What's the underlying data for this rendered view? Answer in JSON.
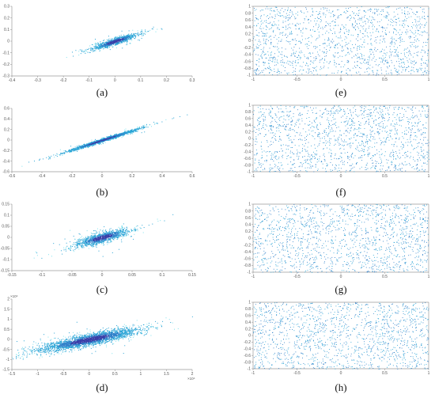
{
  "figure": {
    "panels": [
      "(a)",
      "(b)",
      "(c)",
      "(d)",
      "(e)",
      "(f)",
      "(g)",
      "(h)"
    ]
  },
  "colors": {
    "sparse": "#2aa4d6",
    "dense": "#3a3fa8",
    "mid": "#2d7fc9",
    "light": "#7fe3ee",
    "axis": "#9a9a9a"
  },
  "chart_data": [
    {
      "type": "scatter",
      "title": "(a)",
      "xlim": [
        -0.4,
        0.3
      ],
      "ylim": [
        -0.3,
        0.3
      ],
      "xticks": [
        "-0.4",
        "-0.3",
        "-0.2",
        "-0.1",
        "0",
        "0.1",
        "0.2",
        "0.3"
      ],
      "yticks": [
        "0.3",
        "0.2",
        "0.1",
        "0",
        "-0.1",
        "-0.2",
        "-0.3"
      ],
      "exponent": "",
      "distribution": {
        "kind": "correlated",
        "n": 950,
        "center": [
          0.0,
          0.0
        ],
        "slope": 0.75,
        "sd_along": 0.055,
        "sd_across": 0.012,
        "tail": 0.06
      }
    },
    {
      "type": "scatter",
      "title": "(b)",
      "xlim": [
        -0.6,
        0.6
      ],
      "ylim": [
        -0.6,
        0.6
      ],
      "xticks": [
        "-0.6",
        "-0.4",
        "-0.2",
        "0",
        "0.2",
        "0.4",
        "0.6"
      ],
      "yticks": [
        "0.6",
        "0.4",
        "0.2",
        "0",
        "-0.2",
        "-0.4",
        "-0.6"
      ],
      "exponent": "",
      "distribution": {
        "kind": "correlated",
        "n": 1500,
        "center": [
          0.0,
          0.0
        ],
        "slope": 0.92,
        "sd_along": 0.17,
        "sd_across": 0.012,
        "tail": 0.04
      }
    },
    {
      "type": "scatter",
      "title": "(c)",
      "xlim": [
        -0.15,
        0.15
      ],
      "ylim": [
        -0.15,
        0.15
      ],
      "xticks": [
        "-0.15",
        "-0.1",
        "-0.05",
        "0",
        "0.05",
        "0.1",
        "0.15"
      ],
      "yticks": [
        "0.15",
        "0.1",
        "0.05",
        "0",
        "-0.05",
        "-0.1",
        "-0.15"
      ],
      "exponent": "",
      "distribution": {
        "kind": "correlated",
        "n": 1200,
        "center": [
          0.0,
          0.0
        ],
        "slope": 0.85,
        "sd_along": 0.028,
        "sd_across": 0.009,
        "tail": 0.07
      }
    },
    {
      "type": "scatter",
      "title": "(d)",
      "xlim": [
        -1.5,
        2
      ],
      "ylim": [
        -1.5,
        2
      ],
      "xticks": [
        "-1.5",
        "-1",
        "-0.5",
        "0",
        "0.5",
        "1",
        "1.5",
        "2"
      ],
      "yticks": [
        "2",
        "1.5",
        "1",
        "0.5",
        "0",
        "-0.5",
        "-1",
        "-1.5"
      ],
      "exponent": "×10⁴",
      "xexponent": "×10⁴",
      "distribution": {
        "kind": "correlated",
        "n": 2600,
        "center": [
          0.0,
          0.0
        ],
        "slope": 0.55,
        "sd_along": 0.55,
        "sd_across": 0.13,
        "tail": 0.03
      }
    },
    {
      "type": "scatter",
      "title": "(e)",
      "xlim": [
        -1,
        1
      ],
      "ylim": [
        -1,
        1
      ],
      "xticks": [
        "-1",
        "-0.5",
        "0",
        "0.5",
        "1"
      ],
      "yticks": [
        "1",
        "0.8",
        "0.6",
        "0.4",
        "0.2",
        "0",
        "-0.2",
        "-0.4",
        "-0.6",
        "-0.8",
        "-1"
      ],
      "exponent": "",
      "distribution": {
        "kind": "uniform",
        "n": 1500
      }
    },
    {
      "type": "scatter",
      "title": "(f)",
      "xlim": [
        -1,
        1
      ],
      "ylim": [
        -1,
        1
      ],
      "xticks": [
        "-1",
        "-0.5",
        "0",
        "0.5",
        "1"
      ],
      "yticks": [
        "1",
        "0.8",
        "0.6",
        "0.4",
        "0.2",
        "0",
        "-0.2",
        "-0.4",
        "-0.6",
        "-0.8",
        "-1"
      ],
      "exponent": "",
      "distribution": {
        "kind": "uniform",
        "n": 1500
      }
    },
    {
      "type": "scatter",
      "title": "(g)",
      "xlim": [
        -1,
        1
      ],
      "ylim": [
        -1,
        1
      ],
      "xticks": [
        "-1",
        "-0.5",
        "0",
        "0.5",
        "1"
      ],
      "yticks": [
        "1",
        "0.8",
        "0.6",
        "0.4",
        "0.2",
        "0",
        "-0.2",
        "-0.4",
        "-0.6",
        "-0.8",
        "-1"
      ],
      "exponent": "",
      "distribution": {
        "kind": "uniform",
        "n": 1500
      }
    },
    {
      "type": "scatter",
      "title": "(h)",
      "xlim": [
        -1,
        1
      ],
      "ylim": [
        -1,
        1
      ],
      "xticks": [
        "-1",
        "-0.5",
        "0",
        "0.5",
        "1"
      ],
      "yticks": [
        "1",
        "0.8",
        "0.6",
        "0.4",
        "0.2",
        "0",
        "-0.2",
        "-0.4",
        "-0.6",
        "-0.8",
        "-1"
      ],
      "exponent": "",
      "distribution": {
        "kind": "uniform",
        "n": 1500
      }
    }
  ]
}
